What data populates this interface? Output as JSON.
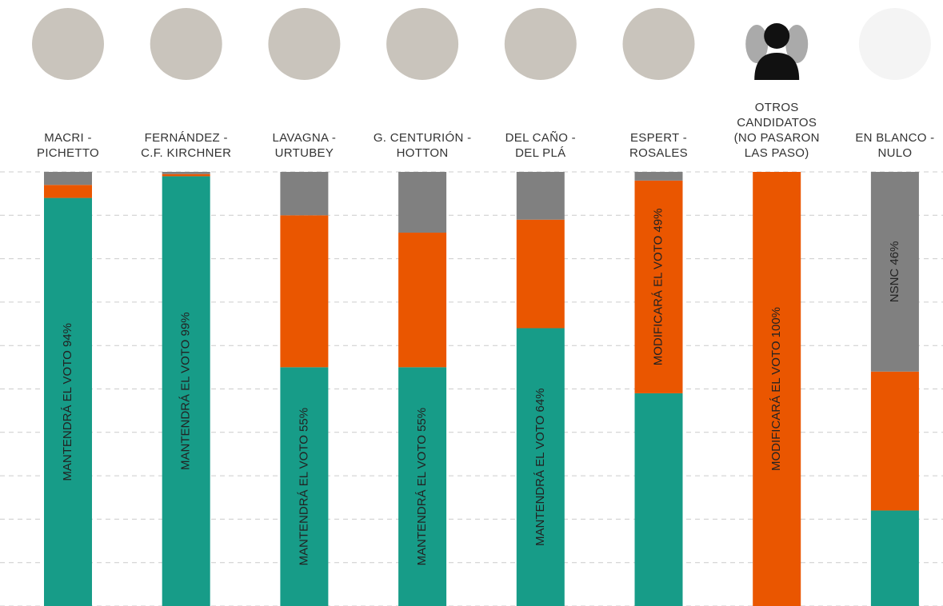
{
  "chart_data": {
    "type": "stacked-bar",
    "categories": [
      "MACRI -\nPICHETTO",
      "FERNÁNDEZ -\nC.F. KIRCHNER",
      "LAVAGNA -\nURTUBEY",
      "G. CENTURIÓN -\nHOTTON",
      "DEL CAÑO -\nDEL PLÁ",
      "ESPERT -\nROSALES",
      "OTROS\nCANDIDATOS\n(NO PASARON\nLAS PASO)",
      "EN BLANCO -\nNULO"
    ],
    "series": [
      {
        "color": "#179c88",
        "values": [
          94,
          99,
          55,
          55,
          64,
          49,
          0,
          22
        ],
        "value_labels": [
          "MANTENDRÁ EL VOTO 94%",
          "MANTENDRÁ EL VOTO 99%",
          "MANTENDRÁ EL VOTO 55%",
          "MANTENDRÁ EL VOTO 55%",
          "MANTENDRÁ EL VOTO 64%",
          null,
          null,
          null
        ]
      },
      {
        "color": "#ea5600",
        "values": [
          3,
          0.5,
          35,
          31,
          25,
          49,
          100,
          32
        ],
        "value_labels": [
          null,
          null,
          null,
          null,
          null,
          "MODIFICARÁ EL VOTO 49%",
          "MODIFICARÁ EL VOTO 100%",
          null
        ]
      },
      {
        "color": "#808080",
        "values": [
          3,
          0.5,
          10,
          14,
          11,
          2,
          0,
          46
        ],
        "value_labels": [
          null,
          null,
          null,
          null,
          null,
          null,
          null,
          "NSNC 46%"
        ]
      }
    ],
    "ylim": [
      0,
      100
    ],
    "yticks": [
      0,
      10,
      20,
      30,
      40,
      50,
      60,
      70,
      80,
      90,
      100
    ],
    "grid": true
  }
}
